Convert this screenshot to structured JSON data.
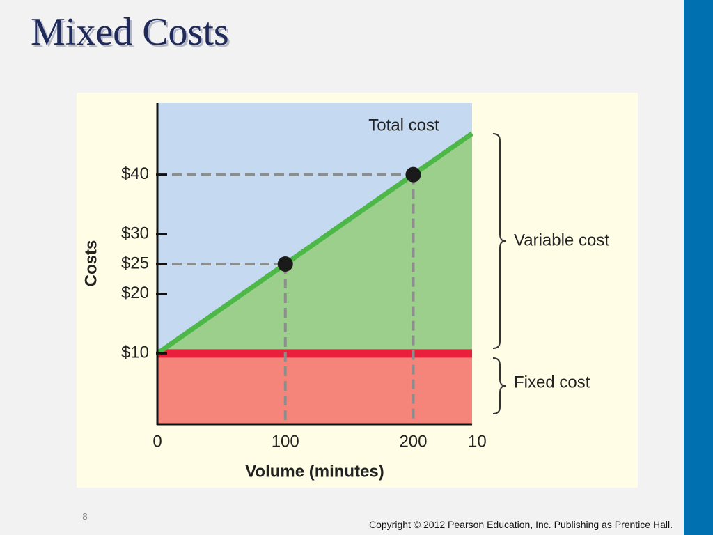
{
  "slide": {
    "title": "Mixed Costs",
    "page_number": "8",
    "copyright": "Copyright © 2012 Pearson Education, Inc. Publishing as Prentice Hall."
  },
  "chart_data": {
    "type": "area",
    "x_label": "Volume (minutes)",
    "y_label": "Costs",
    "x": [
      0,
      100,
      200,
      246
    ],
    "series": [
      {
        "name": "Total cost",
        "color": "#4db848",
        "fill": "#9bcf8b",
        "values": [
          10,
          25,
          40,
          46.9
        ]
      },
      {
        "name": "Fixed cost",
        "color": "#e8203c",
        "fill": "#f5857a",
        "values": [
          10,
          10,
          10,
          10
        ]
      }
    ],
    "points": {
      "x": [
        100,
        200
      ],
      "values": [
        25,
        40
      ]
    },
    "annotations": [
      "Total cost",
      "Variable cost",
      "Fixed cost"
    ],
    "background": "#c5daf0",
    "xlim": [
      0,
      246
    ],
    "ylim": [
      -2,
      52
    ],
    "xticks": [
      0,
      100,
      200,
      {
        "value": 250,
        "label": "10"
      }
    ],
    "yticks": [
      {
        "value": 10,
        "label": "$10"
      },
      {
        "value": 20,
        "label": "$20"
      },
      {
        "value": 25,
        "label": "$25"
      },
      {
        "value": 30,
        "label": "$30"
      },
      {
        "value": 40,
        "label": "$40"
      }
    ]
  }
}
